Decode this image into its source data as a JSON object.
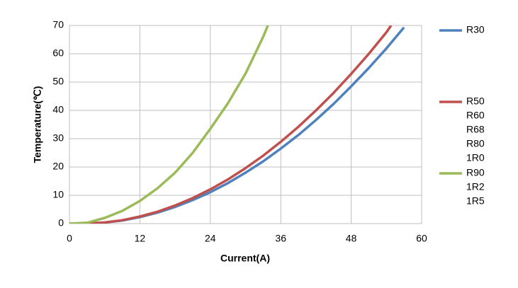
{
  "chart_data": {
    "type": "line",
    "x_label": "Current(A)",
    "y_label": "Temperature(℃)",
    "xlim": [
      0,
      60
    ],
    "xticks": [
      0,
      12,
      24,
      36,
      48,
      60
    ],
    "ylim": [
      0,
      70
    ],
    "yticks": [
      0,
      10,
      20,
      30,
      40,
      50,
      60,
      70
    ],
    "grid": true,
    "legend": "right",
    "series": [
      {
        "name": "R30",
        "other_names": [],
        "color": "#4f81bd",
        "x": [
          0,
          3,
          6,
          9,
          12,
          15,
          18,
          21,
          24,
          27,
          30,
          33,
          36,
          39,
          42,
          45,
          48,
          51,
          54,
          57
        ],
        "values": [
          0,
          0.02,
          0.37,
          1.1,
          2.3,
          3.9,
          5.9,
          8.3,
          11.1,
          14.3,
          18.0,
          22.0,
          26.5,
          31.3,
          36.6,
          42.3,
          48.5,
          55.0,
          61.9,
          69.3
        ]
      },
      {
        "name": "R50",
        "other_names": [
          "R60",
          "R68",
          "R80",
          "1R0"
        ],
        "color": "#c0504d",
        "x": [
          0,
          3,
          6,
          9,
          12,
          15,
          18,
          21,
          24,
          27,
          30,
          33,
          36,
          39,
          42,
          45,
          48,
          51,
          54,
          54.8
        ],
        "values": [
          0,
          0.03,
          0.4,
          1.2,
          2.5,
          4.2,
          6.4,
          9.0,
          12.1,
          15.6,
          19.6,
          24.0,
          28.9,
          34.2,
          40.0,
          46.2,
          52.9,
          60.0,
          67.6,
          70
        ]
      },
      {
        "name": "R90",
        "other_names": [
          "1R2",
          "1R5"
        ],
        "color": "#9bbb59",
        "x": [
          0,
          3,
          6,
          9,
          12,
          15,
          18,
          21,
          24,
          27,
          30,
          33,
          33.8
        ],
        "values": [
          0,
          0.3,
          2,
          4.5,
          8,
          12.5,
          18,
          25,
          33.5,
          42.5,
          53,
          66,
          70
        ]
      }
    ]
  }
}
